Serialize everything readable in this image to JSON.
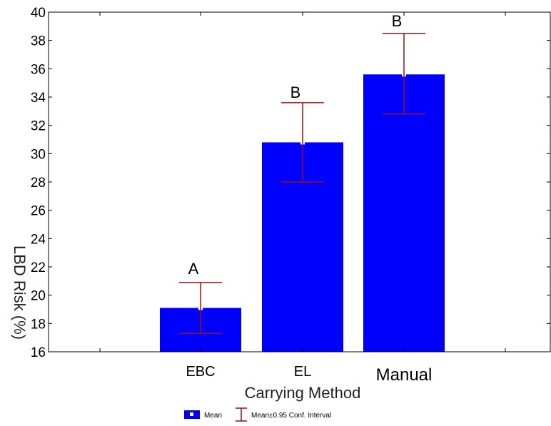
{
  "chart_data": {
    "type": "bar",
    "xlabel": "Carrying Method",
    "ylabel": "LBD Risk (%)",
    "ylim": [
      16,
      40
    ],
    "yticks": [
      "16",
      "18",
      "20",
      "22",
      "24",
      "26",
      "28",
      "30",
      "32",
      "34",
      "36",
      "38",
      "40"
    ],
    "categories": [
      "EBC",
      "EL",
      "Manual"
    ],
    "values": [
      19.1,
      30.8,
      35.6
    ],
    "ci_low": [
      17.3,
      28.0,
      32.8
    ],
    "ci_high": [
      20.9,
      33.6,
      38.5
    ],
    "group_letters": [
      "A",
      "B",
      "B"
    ],
    "bar_color": "#0000ff",
    "errorbar_color": "#a01010",
    "legend": {
      "placement": "bottom-center",
      "mean_label": "Mean",
      "ci_label": "Mean±0.95 Conf. Interval"
    }
  }
}
